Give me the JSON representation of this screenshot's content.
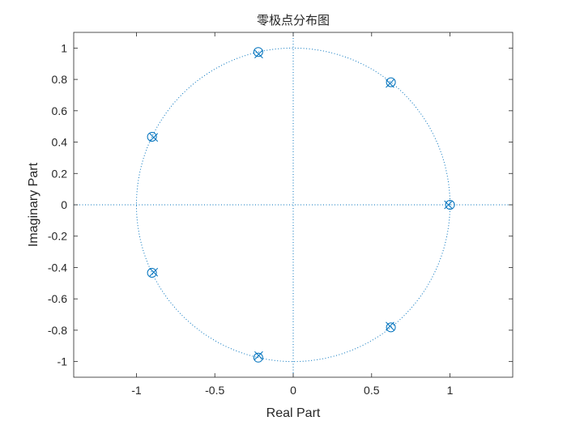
{
  "chart_data": {
    "type": "scatter",
    "title": "零极点分布图",
    "xlabel": "Real Part",
    "ylabel": "Imaginary Part",
    "xlim": [
      -1.4,
      1.4
    ],
    "ylim": [
      -1.1,
      1.1
    ],
    "xticks": [
      -1,
      -0.5,
      0,
      0.5,
      1
    ],
    "xtick_labels": [
      "-1",
      "-0.5",
      "0",
      "0.5",
      "1"
    ],
    "yticks": [
      1,
      0.8,
      0.6,
      0.4,
      0.2,
      0,
      -0.2,
      -0.4,
      -0.6,
      -0.8,
      -1
    ],
    "ytick_labels": [
      "1",
      "0.8",
      "0.6",
      "0.4",
      "0.2",
      "0",
      "-0.2",
      "-0.4",
      "-0.6",
      "-0.8",
      "-1"
    ],
    "grid": false,
    "unit_circle": true,
    "zero_axes": true,
    "color": "#0072BD",
    "zeros": [
      {
        "x": 1.0,
        "y": 0.0
      },
      {
        "x": 0.623,
        "y": 0.782
      },
      {
        "x": -0.223,
        "y": 0.975
      },
      {
        "x": -0.901,
        "y": 0.434
      },
      {
        "x": -0.901,
        "y": -0.434
      },
      {
        "x": -0.223,
        "y": -0.975
      },
      {
        "x": 0.623,
        "y": -0.782
      }
    ],
    "poles": [
      {
        "x": 0.99,
        "y": 0.0
      },
      {
        "x": 0.617,
        "y": 0.774
      },
      {
        "x": -0.22,
        "y": 0.962
      },
      {
        "x": -0.89,
        "y": 0.43
      },
      {
        "x": -0.89,
        "y": -0.43
      },
      {
        "x": -0.22,
        "y": -0.962
      },
      {
        "x": 0.617,
        "y": -0.774
      }
    ]
  }
}
